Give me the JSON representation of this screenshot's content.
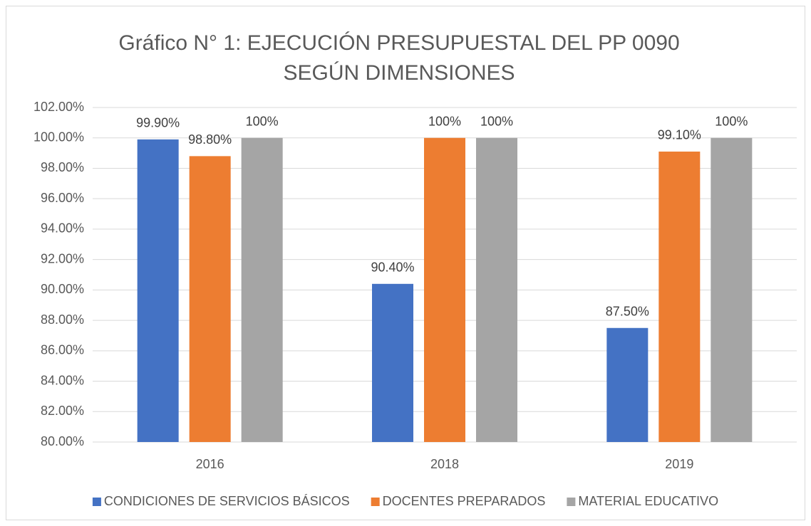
{
  "chart_data": {
    "type": "bar",
    "title": "Gráfico N° 1: EJECUCIÓN PRESUPUESTAL DEL PP 0090 SEGÚN DIMENSIONES",
    "categories": [
      "2016",
      "2018",
      "2019"
    ],
    "series": [
      {
        "name": "CONDICIONES DE SERVICIOS BÁSICOS",
        "color": "#4472c4",
        "values": [
          99.9,
          90.4,
          87.5
        ],
        "value_labels": [
          "99.90%",
          "90.40%",
          "87.50%"
        ]
      },
      {
        "name": "DOCENTES PREPARADOS",
        "color": "#ed7d31",
        "values": [
          98.8,
          100,
          99.1
        ],
        "value_labels": [
          "98.80%",
          "100%",
          "99.10%"
        ]
      },
      {
        "name": "MATERIAL EDUCATIVO",
        "color": "#a5a5a5",
        "values": [
          100,
          100,
          100
        ],
        "value_labels": [
          "100%",
          "100%",
          "100%"
        ]
      }
    ],
    "ylim": [
      80,
      102
    ],
    "yticks": [
      {
        "value": 80,
        "label": "80.00%"
      },
      {
        "value": 82,
        "label": "82.00%"
      },
      {
        "value": 84,
        "label": "84.00%"
      },
      {
        "value": 86,
        "label": "86.00%"
      },
      {
        "value": 88,
        "label": "88.00%"
      },
      {
        "value": 90,
        "label": "90.00%"
      },
      {
        "value": 92,
        "label": "92.00%"
      },
      {
        "value": 94,
        "label": "94.00%"
      },
      {
        "value": 96,
        "label": "96.00%"
      },
      {
        "value": 98,
        "label": "98.00%"
      },
      {
        "value": 100,
        "label": "100.00%"
      },
      {
        "value": 102,
        "label": "102.00%"
      }
    ],
    "grid": true,
    "legend": "bottom"
  }
}
